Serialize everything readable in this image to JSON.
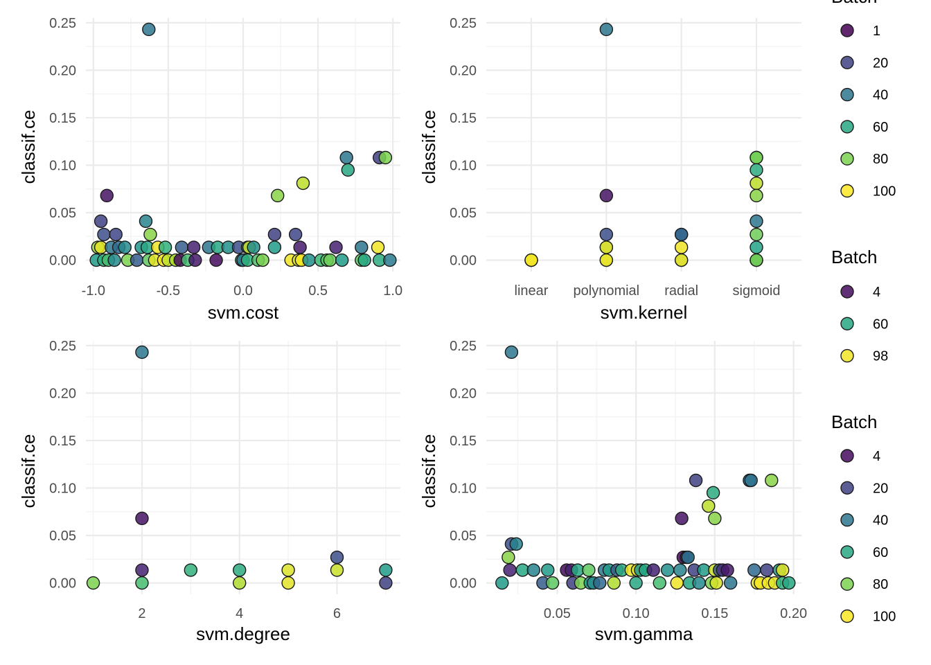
{
  "colors": {
    "panel_bg": "#ffffff",
    "grid_major": "#ebebeb",
    "grid_minor": "#f4f4f4",
    "point_stroke": "#1a1a1a",
    "palette_low": "#440154",
    "palette_high": "#fde725"
  },
  "chart_data": [
    {
      "type": "scatter",
      "xlabel": "svm.cost",
      "ylabel": "classif.ce",
      "xlim": [
        -1.05,
        1.05
      ],
      "ylim": [
        -0.012,
        0.255
      ],
      "xticks": [
        -1.0,
        -0.5,
        0.0,
        0.5,
        1.0
      ],
      "xtick_labels": [
        "-1.0",
        "-0.5",
        "0.0",
        "0.5",
        "1.0"
      ],
      "yticks": [
        0,
        0.05,
        0.1,
        0.15,
        0.2,
        0.25
      ],
      "ytick_labels": [
        "0.00",
        "0.05",
        "0.10",
        "0.15",
        "0.20",
        "0.25"
      ],
      "grid": true,
      "color_by": "Batch",
      "points": [
        [
          -0.63,
          0.243,
          40
        ],
        [
          -0.91,
          0.068,
          6
        ],
        [
          -0.95,
          0.041,
          20
        ],
        [
          -0.93,
          0.027,
          25
        ],
        [
          -0.85,
          0.027,
          22
        ],
        [
          -0.65,
          0.041,
          45
        ],
        [
          -0.62,
          0.027,
          82
        ],
        [
          -0.97,
          0.0135,
          85
        ],
        [
          -0.95,
          0.0135,
          96
        ],
        [
          -0.88,
          0.0135,
          40
        ],
        [
          -0.83,
          0.0135,
          35
        ],
        [
          -0.79,
          0.0135,
          48
        ],
        [
          -0.68,
          0.0135,
          52
        ],
        [
          -0.64,
          0.0135,
          60
        ],
        [
          -0.57,
          0.0135,
          98
        ],
        [
          -0.52,
          0.0135,
          65
        ],
        [
          -0.41,
          0.0135,
          30
        ],
        [
          -0.33,
          0.0135,
          10
        ],
        [
          -0.23,
          0.0135,
          40
        ],
        [
          -0.17,
          0.0135,
          60
        ],
        [
          -0.1,
          0.0135,
          50
        ],
        [
          -0.03,
          0.0135,
          25
        ],
        [
          0.03,
          0.0135,
          40
        ],
        [
          0.04,
          0.0135,
          92
        ],
        [
          0.07,
          0.0135,
          50
        ],
        [
          0.21,
          0.0135,
          55
        ],
        [
          0.38,
          0.0135,
          8
        ],
        [
          0.62,
          0.0135,
          10
        ],
        [
          0.79,
          0.0135,
          40
        ],
        [
          0.9,
          0.0135,
          98
        ],
        [
          -0.98,
          0,
          55
        ],
        [
          -0.93,
          0,
          65
        ],
        [
          -0.9,
          0,
          70
        ],
        [
          -0.86,
          0,
          48
        ],
        [
          -0.77,
          0,
          80
        ],
        [
          -0.71,
          0,
          30
        ],
        [
          -0.63,
          0,
          75
        ],
        [
          -0.59,
          0,
          96
        ],
        [
          -0.53,
          0,
          100
        ],
        [
          -0.5,
          0,
          90
        ],
        [
          -0.45,
          0,
          88
        ],
        [
          -0.42,
          0,
          4
        ],
        [
          -0.37,
          0,
          70
        ],
        [
          -0.32,
          0,
          8
        ],
        [
          -0.18,
          0,
          4
        ],
        [
          -0.01,
          0,
          55
        ],
        [
          0.0,
          0,
          40
        ],
        [
          0.03,
          0,
          65
        ],
        [
          0.1,
          0,
          72
        ],
        [
          0.13,
          0,
          80
        ],
        [
          0.32,
          0,
          98
        ],
        [
          0.37,
          0,
          95
        ],
        [
          0.39,
          0,
          99
        ],
        [
          0.44,
          0,
          50
        ],
        [
          0.52,
          0,
          68
        ],
        [
          0.56,
          0,
          74
        ],
        [
          0.58,
          0,
          78
        ],
        [
          0.66,
          0,
          55
        ],
        [
          0.79,
          0,
          75
        ],
        [
          0.81,
          0,
          60
        ],
        [
          0.91,
          0,
          62
        ],
        [
          0.98,
          0,
          42
        ],
        [
          0.21,
          0.027,
          20
        ],
        [
          0.35,
          0.027,
          22
        ],
        [
          0.23,
          0.068,
          82
        ],
        [
          0.4,
          0.081,
          90
        ],
        [
          0.69,
          0.108,
          40
        ],
        [
          0.7,
          0.095,
          60
        ],
        [
          0.91,
          0.108,
          20
        ],
        [
          0.95,
          0.108,
          80
        ]
      ]
    },
    {
      "type": "scatter",
      "xlabel": "svm.kernel",
      "ylabel": "classif.ce",
      "categories": [
        "linear",
        "polynomial",
        "radial",
        "sigmoid"
      ],
      "ylim": [
        -0.012,
        0.255
      ],
      "yticks": [
        0,
        0.05,
        0.1,
        0.15,
        0.2,
        0.25
      ],
      "ytick_labels": [
        "0.00",
        "0.05",
        "0.10",
        "0.15",
        "0.20",
        "0.25"
      ],
      "grid": true,
      "color_by": "Batch",
      "points": [
        [
          "linear",
          0,
          85
        ],
        [
          "linear",
          0,
          95
        ],
        [
          "linear",
          0,
          99
        ],
        [
          "polynomial",
          0.243,
          40
        ],
        [
          "polynomial",
          0.068,
          6
        ],
        [
          "polynomial",
          0.027,
          25
        ],
        [
          "polynomial",
          0.0135,
          60
        ],
        [
          "polynomial",
          0.0135,
          98
        ],
        [
          "polynomial",
          0,
          80
        ],
        [
          "polynomial",
          0,
          99
        ],
        [
          "radial",
          0.027,
          22
        ],
        [
          "radial",
          0.027,
          35
        ],
        [
          "radial",
          0.0135,
          98
        ],
        [
          "radial",
          0,
          70
        ],
        [
          "radial",
          0,
          99
        ],
        [
          "sigmoid",
          0.108,
          82
        ],
        [
          "sigmoid",
          0.108,
          78
        ],
        [
          "sigmoid",
          0.095,
          62
        ],
        [
          "sigmoid",
          0.081,
          90
        ],
        [
          "sigmoid",
          0.068,
          82
        ],
        [
          "sigmoid",
          0.041,
          40
        ],
        [
          "sigmoid",
          0.027,
          78
        ],
        [
          "sigmoid",
          0.0135,
          58
        ],
        [
          "sigmoid",
          0,
          75
        ],
        [
          "sigmoid",
          0,
          55
        ],
        [
          "sigmoid",
          0,
          80
        ]
      ]
    },
    {
      "type": "scatter",
      "xlabel": "svm.degree",
      "ylabel": "classif.ce",
      "xlim": [
        0.85,
        7.3
      ],
      "ylim": [
        -0.012,
        0.255
      ],
      "xticks": [
        2,
        4,
        6
      ],
      "xtick_labels": [
        "2",
        "4",
        "6"
      ],
      "yticks": [
        0,
        0.05,
        0.1,
        0.15,
        0.2,
        0.25
      ],
      "ytick_labels": [
        "0.00",
        "0.05",
        "0.10",
        "0.15",
        "0.20",
        "0.25"
      ],
      "grid": true,
      "color_by": "Batch",
      "points": [
        [
          2,
          0.243,
          40
        ],
        [
          2,
          0.068,
          6
        ],
        [
          2,
          0.0135,
          10
        ],
        [
          2,
          0,
          70
        ],
        [
          1,
          0,
          80
        ],
        [
          3,
          0.0135,
          65
        ],
        [
          4,
          0.0135,
          62
        ],
        [
          4,
          0,
          88
        ],
        [
          5,
          0.0135,
          95
        ],
        [
          5,
          0,
          96
        ],
        [
          6,
          0.027,
          25
        ],
        [
          6,
          0.0135,
          92
        ],
        [
          7,
          0.0135,
          55
        ],
        [
          7,
          0,
          20
        ]
      ]
    },
    {
      "type": "scatter",
      "xlabel": "svm.gamma",
      "ylabel": "classif.ce",
      "xlim": [
        0.005,
        0.205
      ],
      "ylim": [
        -0.012,
        0.255
      ],
      "xticks": [
        0.05,
        0.1,
        0.15,
        0.2
      ],
      "xtick_labels": [
        "0.05",
        "0.10",
        "0.15",
        "0.20"
      ],
      "yticks": [
        0,
        0.05,
        0.1,
        0.15,
        0.2,
        0.25
      ],
      "ytick_labels": [
        "0.00",
        "0.05",
        "0.10",
        "0.15",
        "0.20",
        "0.25"
      ],
      "grid": true,
      "color_by": "Batch",
      "points": [
        [
          0.021,
          0.243,
          40
        ],
        [
          0.021,
          0.041,
          25
        ],
        [
          0.024,
          0.041,
          45
        ],
        [
          0.019,
          0.027,
          82
        ],
        [
          0.02,
          0.0135,
          10
        ],
        [
          0.015,
          0,
          55
        ],
        [
          0.028,
          0.0135,
          60
        ],
        [
          0.035,
          0.0135,
          45
        ],
        [
          0.041,
          0,
          30
        ],
        [
          0.044,
          0.0135,
          55
        ],
        [
          0.047,
          0,
          75
        ],
        [
          0.056,
          0.0135,
          4
        ],
        [
          0.059,
          0.0135,
          10
        ],
        [
          0.06,
          0,
          20
        ],
        [
          0.063,
          0.0135,
          60
        ],
        [
          0.065,
          0,
          80
        ],
        [
          0.07,
          0.0135,
          75
        ],
        [
          0.071,
          0,
          55
        ],
        [
          0.073,
          0,
          48
        ],
        [
          0.077,
          0,
          35
        ],
        [
          0.08,
          0.0135,
          40
        ],
        [
          0.083,
          0.0135,
          55
        ],
        [
          0.086,
          0,
          88
        ],
        [
          0.088,
          0.0135,
          30
        ],
        [
          0.091,
          0.0135,
          62
        ],
        [
          0.097,
          0.0135,
          97
        ],
        [
          0.1,
          0,
          60
        ],
        [
          0.101,
          0.0135,
          96
        ],
        [
          0.103,
          0.0135,
          55
        ],
        [
          0.106,
          0.0135,
          60
        ],
        [
          0.111,
          0.0135,
          10
        ],
        [
          0.115,
          0,
          70
        ],
        [
          0.12,
          0.0135,
          50
        ],
        [
          0.126,
          0,
          98
        ],
        [
          0.128,
          0.0135,
          45
        ],
        [
          0.129,
          0.068,
          6
        ],
        [
          0.13,
          0.027,
          4
        ],
        [
          0.132,
          0.027,
          8
        ],
        [
          0.133,
          0.027,
          40
        ],
        [
          0.134,
          0,
          60
        ],
        [
          0.137,
          0.0135,
          20
        ],
        [
          0.138,
          0.108,
          20
        ],
        [
          0.14,
          0,
          48
        ],
        [
          0.143,
          0.0135,
          55
        ],
        [
          0.146,
          0.081,
          90
        ],
        [
          0.148,
          0,
          80
        ],
        [
          0.149,
          0.095,
          62
        ],
        [
          0.15,
          0.068,
          82
        ],
        [
          0.15,
          0.0135,
          92
        ],
        [
          0.151,
          0,
          94
        ],
        [
          0.153,
          0.0135,
          30
        ],
        [
          0.155,
          0.0135,
          15
        ],
        [
          0.158,
          0.0135,
          8
        ],
        [
          0.16,
          0,
          40
        ],
        [
          0.172,
          0.108,
          40
        ],
        [
          0.173,
          0.108,
          38
        ],
        [
          0.175,
          0.0135,
          35
        ],
        [
          0.177,
          0,
          96
        ],
        [
          0.179,
          0,
          99
        ],
        [
          0.183,
          0.0135,
          20
        ],
        [
          0.184,
          0,
          98
        ],
        [
          0.186,
          0.108,
          82
        ],
        [
          0.188,
          0,
          96
        ],
        [
          0.191,
          0.0135,
          55
        ],
        [
          0.193,
          0.0135,
          96
        ],
        [
          0.193,
          0,
          65
        ],
        [
          0.197,
          0,
          60
        ]
      ]
    }
  ],
  "legends": [
    {
      "title": "Batch",
      "entries": [
        {
          "label": "1",
          "value": 1
        },
        {
          "label": "20",
          "value": 20
        },
        {
          "label": "40",
          "value": 40
        },
        {
          "label": "60",
          "value": 60
        },
        {
          "label": "80",
          "value": 80
        },
        {
          "label": "100",
          "value": 100
        }
      ]
    },
    {
      "title": "Batch",
      "entries": [
        {
          "label": "4",
          "value": 4
        },
        {
          "label": "60",
          "value": 60
        },
        {
          "label": "98",
          "value": 98
        }
      ]
    },
    {
      "title": "Batch",
      "entries": [
        {
          "label": "4",
          "value": 4
        },
        {
          "label": "20",
          "value": 20
        },
        {
          "label": "40",
          "value": 40
        },
        {
          "label": "60",
          "value": 60
        },
        {
          "label": "80",
          "value": 80
        },
        {
          "label": "100",
          "value": 100
        }
      ]
    }
  ]
}
